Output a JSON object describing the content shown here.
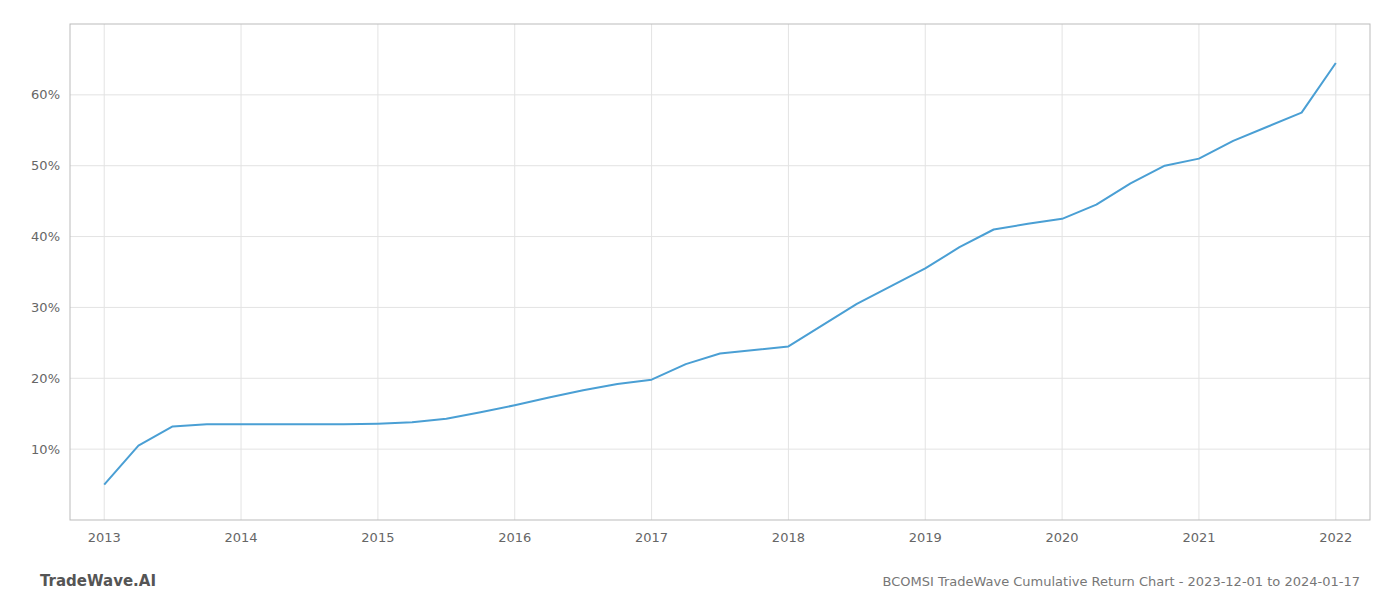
{
  "chart_data": {
    "type": "line",
    "title": "BCOMSI TradeWave Cumulative Return Chart - 2023-12-01 to 2024-01-17",
    "annotations": [
      "TradeWave.AI"
    ],
    "x": [
      2013.0,
      2013.25,
      2013.5,
      2013.75,
      2013.92,
      2014.0,
      2014.25,
      2014.5,
      2014.75,
      2015.0,
      2015.25,
      2015.5,
      2015.75,
      2016.0,
      2016.25,
      2016.5,
      2016.75,
      2017.0,
      2017.25,
      2017.5,
      2017.75,
      2018.0,
      2018.25,
      2018.5,
      2018.75,
      2019.0,
      2019.25,
      2019.5,
      2019.75,
      2020.0,
      2020.25,
      2020.5,
      2020.75,
      2021.0,
      2021.25,
      2021.5,
      2021.75,
      2022.0
    ],
    "values": [
      5.0,
      10.5,
      13.2,
      13.5,
      13.5,
      13.5,
      13.5,
      13.5,
      13.5,
      13.6,
      13.8,
      14.3,
      15.2,
      16.2,
      17.3,
      18.3,
      19.2,
      19.8,
      22.0,
      23.5,
      24.0,
      24.5,
      27.5,
      30.5,
      33.0,
      35.5,
      38.5,
      41.0,
      41.8,
      42.5,
      44.5,
      47.5,
      50.0,
      51.0,
      53.5,
      55.5,
      57.5,
      64.5
    ],
    "color": "#4a9fd4",
    "xlim": [
      2012.75,
      2022.25
    ],
    "ylim": [
      0,
      70
    ],
    "xticks": [
      2013,
      2014,
      2015,
      2016,
      2017,
      2018,
      2019,
      2020,
      2021,
      2022
    ],
    "yticks": [
      {
        "value": 10,
        "label": "10%"
      },
      {
        "value": 20,
        "label": "20%"
      },
      {
        "value": 30,
        "label": "30%"
      },
      {
        "value": 40,
        "label": "40%"
      },
      {
        "value": 50,
        "label": "50%"
      },
      {
        "value": 60,
        "label": "60%"
      }
    ],
    "grid": true
  }
}
